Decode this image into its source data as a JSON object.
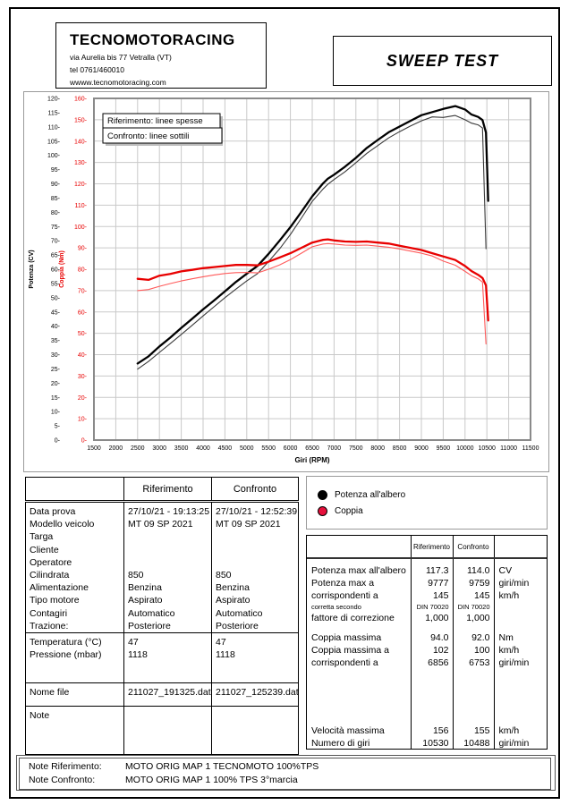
{
  "header": {
    "company": "TECNOMOTORACING",
    "address": "via Aurelia bis 77 Vetralla (VT)",
    "tel": "tel 0761/460010",
    "web": "wwww.tecnomotoracing.com",
    "report_title": "SWEEP TEST"
  },
  "chart_data": {
    "type": "line",
    "xlabel": "Giri (RPM)",
    "x_range": [
      1500,
      11500
    ],
    "x_tick_step": 500,
    "y_left_power": {
      "label": "Potenza (CV)",
      "range": [
        0,
        120
      ],
      "tick_step": 5,
      "color": "#000000"
    },
    "y_left_torque": {
      "label": "Coppia (Nm)",
      "range": [
        0,
        160
      ],
      "tick_step": 10,
      "color": "#e80000"
    },
    "grid": true,
    "grid_color": "#c9c9c9",
    "frame_color": "#8a8a8a",
    "legend_box": [
      "Riferimento: linee spesse",
      "Confronto: linee sottili"
    ],
    "rpm": [
      2500,
      2750,
      3000,
      3250,
      3500,
      3750,
      4000,
      4250,
      4500,
      4750,
      5000,
      5250,
      5500,
      5750,
      6000,
      6250,
      6500,
      6750,
      6856,
      7000,
      7250,
      7500,
      7750,
      8000,
      8250,
      8500,
      8750,
      9000,
      9250,
      9500,
      9777,
      10000,
      10150,
      10300,
      10400,
      10480,
      10530
    ],
    "series": [
      {
        "name": "Potenza Confronto",
        "axis": "power",
        "style": "thin",
        "color": "#3a3a3a",
        "width": 1.1,
        "values": [
          24.9,
          27.6,
          30.8,
          33.9,
          37.1,
          40.3,
          43.6,
          46.8,
          50.0,
          53.0,
          55.9,
          58.5,
          62.7,
          67.1,
          72.2,
          77.9,
          83.8,
          88.2,
          89.8,
          91.5,
          94.2,
          97.4,
          100.7,
          103.4,
          106.1,
          108.3,
          110.3,
          112.1,
          113.5,
          113.3,
          114.0,
          112.5,
          111.3,
          110.7,
          109.6,
          67.2,
          null
        ]
      },
      {
        "name": "Potenza Riferimento",
        "axis": "power",
        "style": "thick",
        "color": "#000000",
        "width": 2.3,
        "values": [
          26.9,
          29.4,
          32.9,
          36.0,
          39.4,
          42.6,
          45.9,
          49.0,
          52.2,
          55.5,
          58.4,
          61.2,
          65.4,
          70.0,
          74.8,
          80.1,
          85.6,
          90.2,
          91.8,
          93.2,
          96.0,
          99.1,
          102.6,
          105.4,
          108.1,
          110.1,
          112.1,
          114.1,
          115.2,
          116.3,
          117.3,
          116.1,
          114.3,
          113.5,
          112.4,
          108.0,
          84.0
        ]
      },
      {
        "name": "Coppia Confronto",
        "axis": "torque",
        "style": "thin",
        "color": "#ff5a5a",
        "width": 1.1,
        "values": [
          70.0,
          70.5,
          72.0,
          73.3,
          74.5,
          75.5,
          76.5,
          77.3,
          78.0,
          78.4,
          78.5,
          78.3,
          80.0,
          82.0,
          84.5,
          87.5,
          90.5,
          91.8,
          92.0,
          91.8,
          91.3,
          91.2,
          91.3,
          90.8,
          90.3,
          89.5,
          88.5,
          87.5,
          86.2,
          83.8,
          81.9,
          79.0,
          77.0,
          75.5,
          74.0,
          45.0,
          null
        ]
      },
      {
        "name": "Coppia Riferimento",
        "axis": "torque",
        "style": "thick",
        "color": "#e80000",
        "width": 2.3,
        "values": [
          75.5,
          75.0,
          77.0,
          77.8,
          79.0,
          79.7,
          80.5,
          81.0,
          81.5,
          82.0,
          82.0,
          81.8,
          83.5,
          85.5,
          87.5,
          90.0,
          92.5,
          93.8,
          94.0,
          93.5,
          93.0,
          92.8,
          93.0,
          92.5,
          92.0,
          91.0,
          90.0,
          89.0,
          87.5,
          86.0,
          84.3,
          81.5,
          79.1,
          77.4,
          75.9,
          72.4,
          56.0
        ]
      }
    ]
  },
  "info_table": {
    "col_headers": [
      "Riferimento",
      "Confronto"
    ],
    "rows": [
      {
        "label": "Data prova",
        "rif": "27/10/21 - 19:13:25",
        "conf": "27/10/21 - 12:52:39"
      },
      {
        "label": "Modello veicolo",
        "rif": "MT 09 SP 2021",
        "conf": "MT 09 SP 2021"
      },
      {
        "label": "Targa",
        "rif": "",
        "conf": ""
      },
      {
        "label": "Cliente",
        "rif": "",
        "conf": ""
      },
      {
        "label": "Operatore",
        "rif": "",
        "conf": ""
      },
      {
        "label": "Cilindrata",
        "rif": "850",
        "conf": "850"
      },
      {
        "label": "Alimentazione",
        "rif": "Benzina",
        "conf": "Benzina"
      },
      {
        "label": "Tipo motore",
        "rif": "Aspirato",
        "conf": "Aspirato"
      },
      {
        "label": "Contagiri",
        "rif": "Automatico",
        "conf": "Automatico"
      },
      {
        "label": "Trazione:",
        "rif": "Posteriore",
        "conf": "Posteriore"
      }
    ],
    "env_rows": [
      {
        "label": "Temperatura (°C)",
        "rif": "47",
        "conf": "47"
      },
      {
        "label": "Pressione (mbar)",
        "rif": "1118",
        "conf": "1118"
      }
    ],
    "file_row": {
      "label": "Nome file",
      "rif": "211027_191325.dat",
      "conf": "211027_125239.dat"
    },
    "note_label": "Note"
  },
  "curve_legend": [
    {
      "label": "Potenza all'albero",
      "color": "#000000"
    },
    {
      "label": "Coppia",
      "color": "#e6103c"
    }
  ],
  "results_table": {
    "col_headers": [
      "Riferimento",
      "Confronto"
    ],
    "groups": [
      {
        "rows": [
          {
            "label": "Potenza max all'albero",
            "rif": "117.3",
            "conf": "114.0",
            "unit": "CV",
            "small": false
          },
          {
            "label": "Potenza max a",
            "rif": "9777",
            "conf": "9759",
            "unit": "giri/min",
            "small": false
          },
          {
            "label": "corrispondenti a",
            "rif": "145",
            "conf": "145",
            "unit": "km/h",
            "small": false
          },
          {
            "label": "corretta secondo",
            "rif": "DIN 70020",
            "conf": "DIN 70020",
            "unit": "",
            "small": true
          },
          {
            "label": "fattore di correzione",
            "rif": "1,000",
            "conf": "1,000",
            "unit": "",
            "small": false
          }
        ]
      },
      {
        "rows": [
          {
            "label": "Coppia massima",
            "rif": "94.0",
            "conf": "92.0",
            "unit": "Nm",
            "small": false
          },
          {
            "label": "Coppia massima a",
            "rif": "102",
            "conf": "100",
            "unit": "km/h",
            "small": false
          },
          {
            "label": "corrispondenti a",
            "rif": "6856",
            "conf": "6753",
            "unit": "giri/min",
            "small": false
          }
        ]
      },
      {
        "rows": [
          {
            "label": "Velocità massima",
            "rif": "156",
            "conf": "155",
            "unit": "km/h",
            "small": false
          },
          {
            "label": "Numero di giri",
            "rif": "10530",
            "conf": "10488",
            "unit": "giri/min",
            "small": false
          }
        ]
      }
    ]
  },
  "bottom_notes": [
    {
      "label": "Note Riferimento:",
      "text": "MOTO ORIG MAP 1 TECNOMOTO 100%TPS"
    },
    {
      "label": "Note Confronto:",
      "text": "MOTO ORIG MAP 1 100% TPS 3°marcia"
    }
  ]
}
